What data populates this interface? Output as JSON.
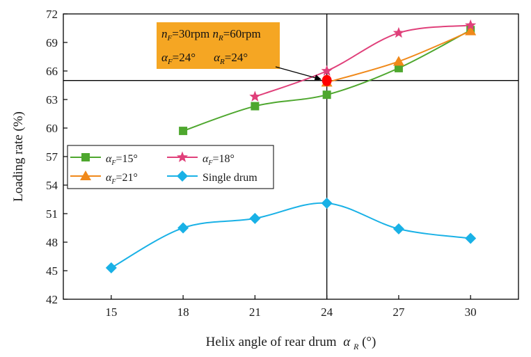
{
  "chart_data": {
    "type": "line",
    "title": "",
    "xlabel": "Helix angle of rear drum",
    "xlabel_symbol": "α",
    "xlabel_sub": "R",
    "xlabel_unit": " (°)",
    "ylabel": "Loading rate (%)",
    "xlim": [
      13,
      32
    ],
    "ylim": [
      42,
      72
    ],
    "xticks": [
      15,
      18,
      21,
      24,
      27,
      30
    ],
    "yticks": [
      42,
      45,
      48,
      51,
      54,
      57,
      60,
      63,
      66,
      69,
      72
    ],
    "legend_position": "middle-left",
    "series": [
      {
        "name": "α_F=15°",
        "greek": "α",
        "sub": "F",
        "rest": "=15°",
        "color": "#4ea72e",
        "marker": "square",
        "x": [
          18,
          21,
          24,
          27,
          30
        ],
        "values": [
          59.7,
          62.3,
          63.5,
          66.3,
          70.3
        ]
      },
      {
        "name": "α_F=18°",
        "greek": "α",
        "sub": "F",
        "rest": "=18°",
        "color": "#e0407a",
        "marker": "star",
        "x": [
          21,
          24,
          27,
          30
        ],
        "values": [
          63.3,
          66.0,
          70.0,
          70.8
        ]
      },
      {
        "name": "α_F=21°",
        "greek": "α",
        "sub": "F",
        "rest": "=21°",
        "color": "#f0891a",
        "marker": "triangle",
        "x": [
          24,
          27,
          30
        ],
        "values": [
          64.8,
          67.0,
          70.2
        ]
      },
      {
        "name": "Single drum",
        "greek": "",
        "sub": "",
        "rest": "Single drum",
        "color": "#19b1e6",
        "marker": "diamond",
        "x": [
          15,
          18,
          21,
          24,
          27,
          30
        ],
        "values": [
          45.3,
          49.5,
          50.5,
          52.1,
          49.4,
          48.4
        ]
      }
    ],
    "reference_lines": {
      "x": 24,
      "y": 65
    },
    "highlight_point": {
      "x": 24,
      "y": 65,
      "color": "#ff0000"
    },
    "annotation": {
      "background": "#f5a623",
      "line1": [
        {
          "italic": "n",
          "sub": "F",
          "text": "=30rpm "
        },
        {
          "italic": "n",
          "sub": "R",
          "text": "=60rpm"
        }
      ],
      "line2": [
        {
          "italic": "α",
          "sub": "F",
          "text": "=24°"
        },
        {
          "italic": "α",
          "sub": "R",
          "text": "=24°"
        }
      ]
    }
  }
}
